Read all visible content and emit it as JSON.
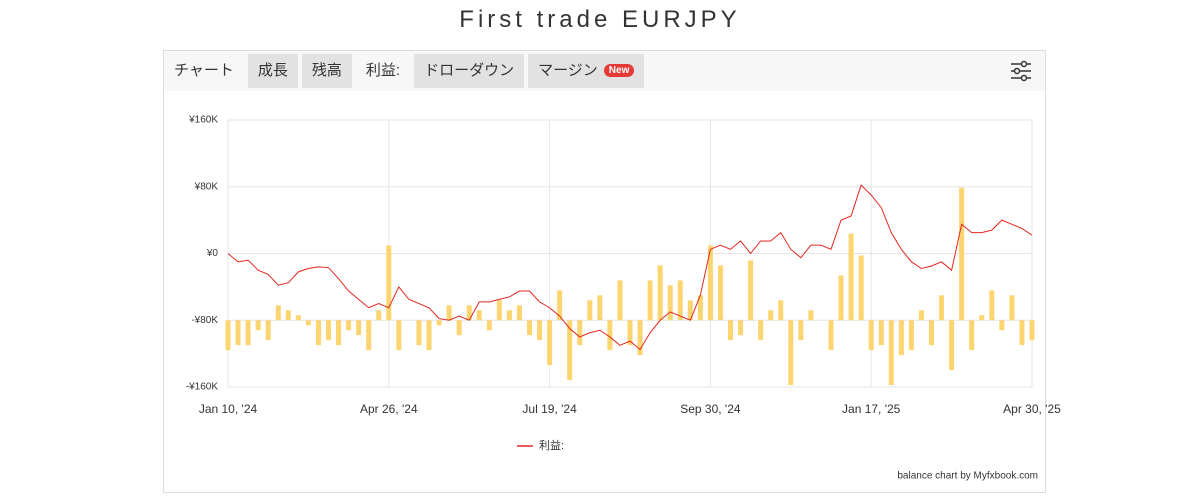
{
  "title": "First trade EURJPY",
  "tabs": [
    "チャート",
    "成長",
    "残高",
    "利益:",
    "ドローダウン",
    "マージン"
  ],
  "badge": "New",
  "credit": "balance chart by Myfxbook.com",
  "chart_data": {
    "type": "combo",
    "x": [
      0,
      1,
      2,
      3,
      4,
      5,
      6,
      7,
      8,
      9,
      10,
      11,
      12,
      13,
      14,
      15,
      16,
      17,
      18,
      19,
      20,
      21,
      22,
      23,
      24,
      25,
      26,
      27,
      28,
      29,
      30,
      31,
      32,
      33,
      34,
      35,
      36,
      37,
      38,
      39,
      40,
      41,
      42,
      43,
      44,
      45,
      46,
      47,
      48,
      49,
      50,
      51,
      52,
      53,
      54,
      55,
      56,
      57,
      58,
      59,
      60,
      61,
      62,
      63,
      64,
      65,
      66,
      67,
      68,
      69,
      70,
      71,
      72,
      73,
      74,
      75,
      76,
      77,
      78,
      79,
      80
    ],
    "xlim": [
      0,
      80
    ],
    "xticks": [
      {
        "value": 0,
        "label": "Jan 10, '24"
      },
      {
        "value": 16,
        "label": "Apr 26, '24"
      },
      {
        "value": 32,
        "label": "Jul 19, '24"
      },
      {
        "value": 48,
        "label": "Sep 30, '24"
      },
      {
        "value": 64,
        "label": "Jan 17, '25"
      },
      {
        "value": 80,
        "label": "Apr 30, '25"
      }
    ],
    "ylim": [
      -160000,
      160000
    ],
    "yticks": [
      {
        "value": -160000,
        "label": "-¥160K"
      },
      {
        "value": -80000,
        "label": "-¥80K"
      },
      {
        "value": 0,
        "label": "¥0"
      },
      {
        "value": 80000,
        "label": "¥80K"
      },
      {
        "value": 160000,
        "label": "¥160K"
      }
    ],
    "y2lim": [
      -67000,
      201000
    ],
    "grid": true,
    "legend": "bottom",
    "series": [
      {
        "name": "利益:",
        "type": "line",
        "color": "#e3261f",
        "values": [
          0,
          -10000,
          -8000,
          -20000,
          -25000,
          -38000,
          -35000,
          -22000,
          -18000,
          -16000,
          -17000,
          -30000,
          -45000,
          -55000,
          -65000,
          -60000,
          -65000,
          -40000,
          -55000,
          -60000,
          -65000,
          -78000,
          -80000,
          -75000,
          -80000,
          -58000,
          -58000,
          -55000,
          -52000,
          -45000,
          -45000,
          -58000,
          -65000,
          -75000,
          -90000,
          -100000,
          -95000,
          -92000,
          -100000,
          -110000,
          -105000,
          -115000,
          -95000,
          -80000,
          -70000,
          -75000,
          -80000,
          -50000,
          5000,
          10000,
          5000,
          15000,
          0,
          15000,
          15000,
          25000,
          5000,
          -5000,
          10000,
          10000,
          5000,
          40000,
          45000,
          82000,
          70000,
          55000,
          25000,
          5000,
          -10000,
          -18000,
          -15000,
          -10000,
          -20000,
          35000,
          25000,
          25000,
          28000,
          40000,
          35000,
          30000,
          22000
        ]
      },
      {
        "type": "bar",
        "axis": "y2",
        "color": "#fcd470",
        "values": [
          -30000,
          -25000,
          -25000,
          -10000,
          -20000,
          15000,
          10000,
          5000,
          -5000,
          -25000,
          -20000,
          -25000,
          -10000,
          -15000,
          -30000,
          10000,
          75000,
          -30000,
          0,
          -25000,
          -30000,
          -5000,
          15000,
          -15000,
          15000,
          10000,
          -10000,
          20000,
          10000,
          15000,
          -15000,
          -20000,
          -45000,
          30000,
          -60000,
          -25000,
          20000,
          25000,
          -30000,
          40000,
          -25000,
          -35000,
          40000,
          55000,
          35000,
          40000,
          20000,
          25000,
          75000,
          55000,
          -20000,
          -15000,
          60000,
          -20000,
          10000,
          20000,
          -65000,
          -20000,
          10000,
          0,
          -30000,
          45000,
          87000,
          65000,
          -30000,
          -25000,
          -65000,
          -35000,
          -30000,
          10000,
          -25000,
          25000,
          -50000,
          133000,
          -30000,
          5000,
          30000,
          -10000,
          25000,
          -25000,
          -20000
        ]
      }
    ]
  }
}
